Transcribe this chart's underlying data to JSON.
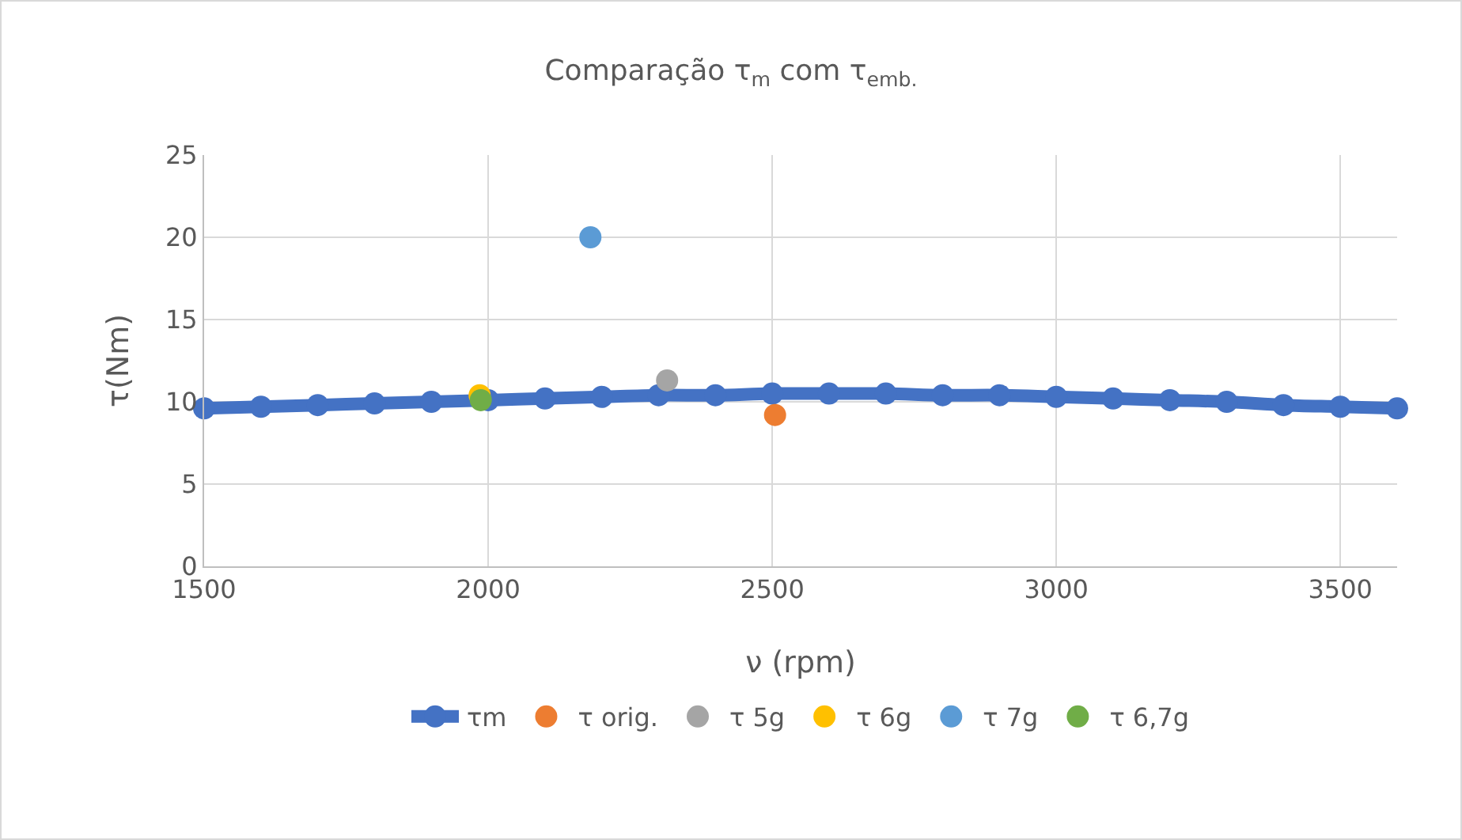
{
  "chart_data": {
    "type": "scatter",
    "title": "Comparação τ$_{m}$ com τ$_{emb.}$",
    "xlabel": "ν (rpm)",
    "ylabel": "τ(Nm)",
    "xlim": [
      1500,
      3600
    ],
    "xticks": [
      1500,
      2000,
      2500,
      3000,
      3500
    ],
    "ylim": [
      0,
      25
    ],
    "yticks": [
      0,
      5,
      10,
      15,
      20,
      25
    ],
    "grid": true,
    "legend": "bottom",
    "marker": "circle",
    "series": [
      {
        "name": "τm",
        "type": "line",
        "color": "#4472c4",
        "x": [
          1500,
          1600,
          1700,
          1800,
          1900,
          2000,
          2100,
          2200,
          2300,
          2400,
          2500,
          2600,
          2700,
          2800,
          2900,
          3000,
          3100,
          3200,
          3300,
          3400,
          3500,
          3600
        ],
        "values": [
          9.6,
          9.7,
          9.8,
          9.9,
          10.0,
          10.1,
          10.2,
          10.3,
          10.4,
          10.4,
          10.5,
          10.5,
          10.5,
          10.4,
          10.4,
          10.3,
          10.2,
          10.1,
          10.0,
          9.8,
          9.7,
          9.6
        ]
      },
      {
        "name": "τ orig.",
        "color": "#ed7d31",
        "x": [
          2505
        ],
        "values": [
          9.2
        ]
      },
      {
        "name": "τ 5g",
        "color": "#a5a5a5",
        "x": [
          2315
        ],
        "values": [
          11.3
        ]
      },
      {
        "name": "τ 6g",
        "color": "#ffc000",
        "x": [
          1985
        ],
        "values": [
          10.4
        ]
      },
      {
        "name": "τ 7g",
        "color": "#5b9bd5",
        "x": [
          2180
        ],
        "values": [
          20
        ]
      },
      {
        "name": "τ 6,7g",
        "color": "#70ad47",
        "x": [
          1987
        ],
        "values": [
          10.1
        ]
      }
    ]
  }
}
